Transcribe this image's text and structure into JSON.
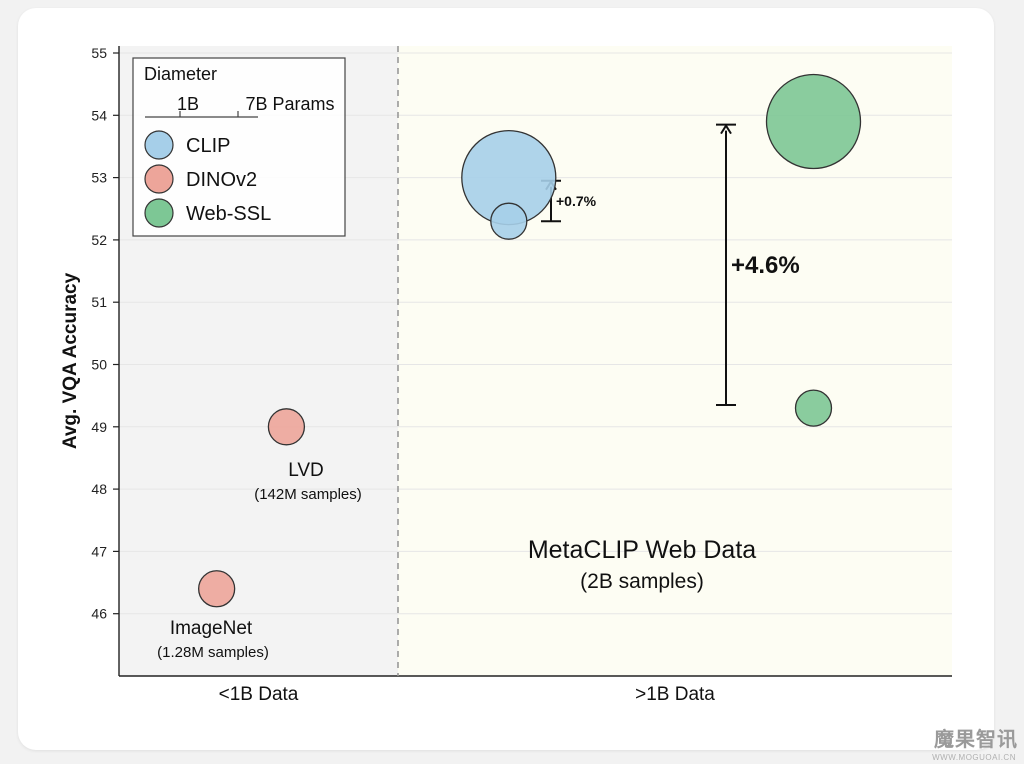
{
  "colors": {
    "clip": "#a6cfe9",
    "dinov2": "#eda59a",
    "webssl": "#7dc795",
    "left_bg": "#f3f3f3",
    "right_bg": "#fdfdf3",
    "outline": "#333333"
  },
  "chart_data": {
    "type": "scatter",
    "ylabel": "Avg. VQA Accuracy",
    "ylim": [
      45,
      55
    ],
    "yticks": [
      "55",
      "54",
      "53",
      "52",
      "51",
      "50",
      "49",
      "48",
      "47",
      "46"
    ],
    "categories": [
      "<1B Data",
      ">1B Data"
    ],
    "grid": true,
    "legend": {
      "title": "Diameter",
      "size_min_label": "1B",
      "size_max_label": "7B Params",
      "placement": "top-left",
      "entries": [
        {
          "name": "CLIP",
          "color_key": "clip"
        },
        {
          "name": "DINOv2",
          "color_key": "dinov2"
        },
        {
          "name": "Web-SSL",
          "color_key": "webssl"
        }
      ]
    },
    "series": [
      {
        "name": "CLIP",
        "points": [
          {
            "category": ">1B Data",
            "offset": -0.3,
            "y": 53.0,
            "params_b": 7
          },
          {
            "category": ">1B Data",
            "offset": -0.3,
            "y": 52.3,
            "params_b": 1
          }
        ]
      },
      {
        "name": "DINOv2",
        "points": [
          {
            "category": "<1B Data",
            "offset": 0.1,
            "y": 49.0,
            "params_b": 1
          },
          {
            "category": "<1B Data",
            "offset": -0.15,
            "y": 46.4,
            "params_b": 1
          }
        ]
      },
      {
        "name": "Web-SSL",
        "points": [
          {
            "category": ">1B Data",
            "offset": 0.25,
            "y": 53.9,
            "params_b": 7
          },
          {
            "category": ">1B Data",
            "offset": 0.25,
            "y": 49.3,
            "params_b": 1
          }
        ]
      }
    ],
    "annotations": {
      "lvd": {
        "name": "LVD",
        "detail": "(142M samples)"
      },
      "imagenet": {
        "name": "ImageNet",
        "detail": "(1.28M samples)"
      },
      "metaclip": {
        "name": "MetaCLIP Web Data",
        "detail": "(2B samples)"
      },
      "clip_gain": {
        "label": "+0.7%",
        "from": 52.3,
        "to": 52.95
      },
      "webssl_gain": {
        "label": "+4.6%",
        "from": 49.35,
        "to": 53.85
      }
    }
  },
  "watermark": {
    "text": "魔果智讯",
    "sub": "WWW.MOGUOAI.CN"
  }
}
